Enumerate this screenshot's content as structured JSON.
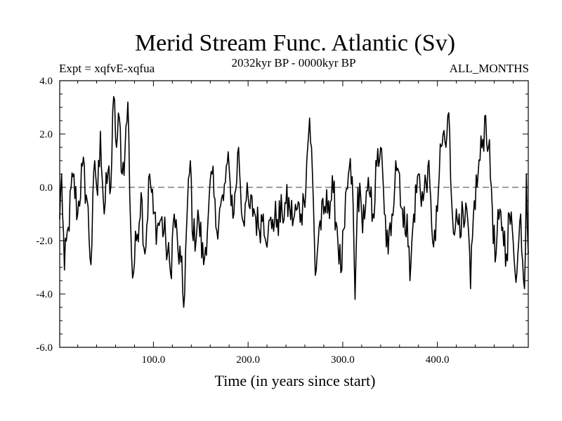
{
  "chart_data": {
    "type": "line",
    "title": "Merid Stream Func. Atlantic (Sv)",
    "subtitle_left": "Expt = xqfvE-xqfua",
    "subtitle_center": "2032kyr BP - 0000kyr BP",
    "subtitle_right": "ALL_MONTHS",
    "xlabel": "Time (in years since start)",
    "ylabel": "",
    "xlim": [
      1,
      496
    ],
    "ylim": [
      -6.0,
      4.0
    ],
    "x_ticks": [
      100,
      200,
      300,
      400
    ],
    "x_tick_labels": [
      "100.0",
      "200.0",
      "300.0",
      "400.0"
    ],
    "y_ticks": [
      -6,
      -4,
      -2,
      0,
      2,
      4
    ],
    "y_tick_labels": [
      "-6.0",
      "-4.0",
      "-2.0",
      "0.0",
      "2.0",
      "4.0"
    ],
    "reference_line_y": 0.0,
    "series": [
      {
        "name": "Merid Stream Func. Atlantic",
        "generator": "anchored-noise",
        "n_points": 496,
        "anchors": [
          [
            1,
            -1.2
          ],
          [
            3,
            0.5
          ],
          [
            6,
            -3.1
          ],
          [
            10,
            -1.5
          ],
          [
            15,
            0.4
          ],
          [
            20,
            -1.0
          ],
          [
            25,
            0.8
          ],
          [
            30,
            -0.5
          ],
          [
            34,
            -2.9
          ],
          [
            38,
            1.0
          ],
          [
            41,
            -0.3
          ],
          [
            44,
            2.1
          ],
          [
            48,
            -1.0
          ],
          [
            52,
            0.6
          ],
          [
            55,
            0.0
          ],
          [
            58,
            3.4
          ],
          [
            61,
            1.5
          ],
          [
            64,
            2.6
          ],
          [
            67,
            0.5
          ],
          [
            70,
            1.4
          ],
          [
            73,
            3.2
          ],
          [
            76,
            -1.5
          ],
          [
            78,
            -3.4
          ],
          [
            82,
            -2.0
          ],
          [
            87,
            -0.2
          ],
          [
            91,
            -2.5
          ],
          [
            96,
            0.5
          ],
          [
            100,
            -1.0
          ],
          [
            104,
            -1.5
          ],
          [
            108,
            -1.2
          ],
          [
            113,
            -2.0
          ],
          [
            118,
            -3.2
          ],
          [
            122,
            -1.0
          ],
          [
            126,
            -2.4
          ],
          [
            129,
            -2.8
          ],
          [
            132,
            -4.5
          ],
          [
            135,
            -1.5
          ],
          [
            139,
            1.0
          ],
          [
            142,
            -2.0
          ],
          [
            148,
            -1.2
          ],
          [
            153,
            -2.9
          ],
          [
            158,
            -1.0
          ],
          [
            162,
            0.5
          ],
          [
            166,
            -1.5
          ],
          [
            170,
            -0.8
          ],
          [
            174,
            -0.5
          ],
          [
            178,
            0.9
          ],
          [
            181,
            0.2
          ],
          [
            185,
            -1.0
          ],
          [
            190,
            1.5
          ],
          [
            194,
            -1.2
          ],
          [
            198,
            -0.5
          ],
          [
            202,
            -0.8
          ],
          [
            206,
            -0.8
          ],
          [
            211,
            -1.5
          ],
          [
            216,
            -1.0
          ],
          [
            221,
            -1.8
          ],
          [
            226,
            -1.2
          ],
          [
            231,
            -1.2
          ],
          [
            236,
            -1.0
          ],
          [
            240,
            -0.6
          ],
          [
            244,
            -0.8
          ],
          [
            248,
            -1.2
          ],
          [
            252,
            -0.8
          ],
          [
            256,
            -1.0
          ],
          [
            259,
            -0.5
          ],
          [
            262,
            1.0
          ],
          [
            265,
            2.6
          ],
          [
            268,
            0.5
          ],
          [
            271,
            -3.3
          ],
          [
            275,
            -1.5
          ],
          [
            280,
            -1.0
          ],
          [
            285,
            -0.5
          ],
          [
            290,
            -0.2
          ],
          [
            294,
            -1.5
          ],
          [
            298,
            -3.2
          ],
          [
            302,
            -1.5
          ],
          [
            306,
            0.5
          ],
          [
            310,
            0.4
          ],
          [
            313,
            -4.2
          ],
          [
            316,
            0.0
          ],
          [
            320,
            -1.0
          ],
          [
            324,
            -0.8
          ],
          [
            328,
            -0.2
          ],
          [
            332,
            -1.0
          ],
          [
            336,
            0.8
          ],
          [
            340,
            1.5
          ],
          [
            344,
            -1.0
          ],
          [
            348,
            -2.5
          ],
          [
            352,
            -1.0
          ],
          [
            356,
            1.0
          ],
          [
            360,
            0.5
          ],
          [
            364,
            -1.5
          ],
          [
            368,
            -1.0
          ],
          [
            371,
            -3.5
          ],
          [
            375,
            -1.0
          ],
          [
            380,
            0.5
          ],
          [
            385,
            -0.5
          ],
          [
            390,
            0.8
          ],
          [
            394,
            -1.5
          ],
          [
            398,
            -2.0
          ],
          [
            402,
            0.5
          ],
          [
            406,
            2.0
          ],
          [
            409,
            1.5
          ],
          [
            412,
            2.8
          ],
          [
            415,
            -0.5
          ],
          [
            419,
            -1.5
          ],
          [
            423,
            -1.0
          ],
          [
            428,
            -1.5
          ],
          [
            432,
            -1.2
          ],
          [
            435,
            -3.8
          ],
          [
            439,
            -0.5
          ],
          [
            443,
            0.5
          ],
          [
            448,
            1.8
          ],
          [
            451,
            2.7
          ],
          [
            454,
            1.5
          ],
          [
            457,
            0.0
          ],
          [
            461,
            -2.8
          ],
          [
            465,
            -1.2
          ],
          [
            469,
            -1.5
          ],
          [
            473,
            -2.5
          ],
          [
            476,
            -1.0
          ],
          [
            480,
            -2.0
          ],
          [
            484,
            -3.2
          ],
          [
            488,
            -1.0
          ],
          [
            492,
            -3.8
          ],
          [
            494,
            0.5
          ],
          [
            496,
            -2.5
          ]
        ]
      }
    ]
  }
}
